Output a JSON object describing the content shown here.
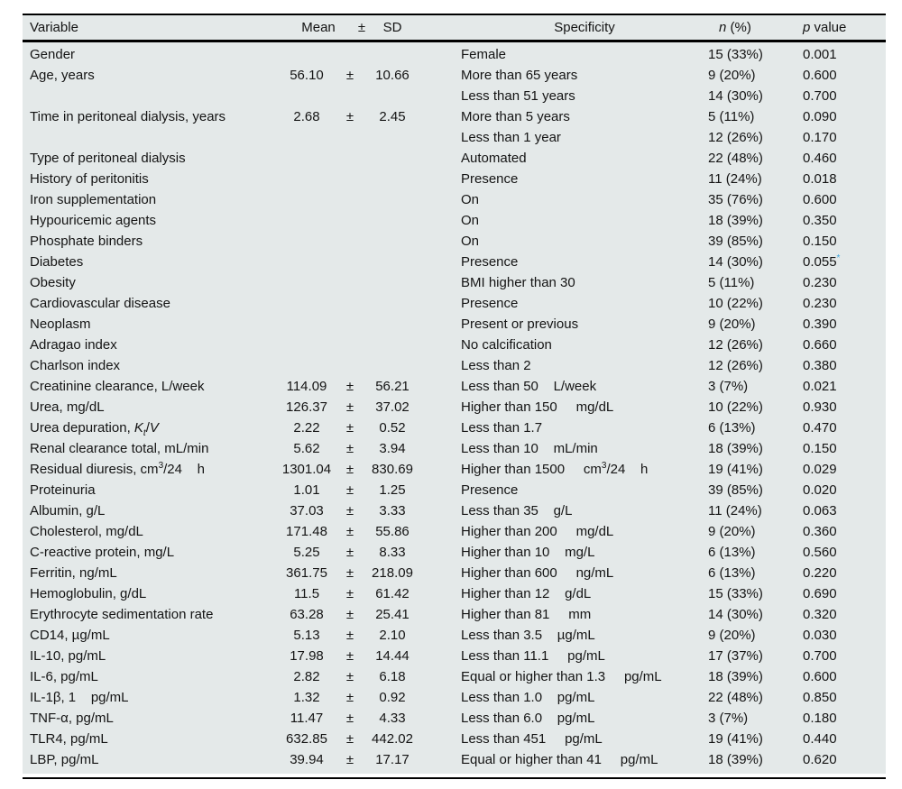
{
  "table": {
    "background_color": "#e4e9e9",
    "rule_color": "#000000",
    "accent_color": "#3aa4dc",
    "pm_sign": "±",
    "header": {
      "variable": "Variable",
      "mean": "Mean",
      "pm": "±",
      "sd": "SD",
      "specificity": "Specificity",
      "n_italic": "n",
      "n_rest": " (%)",
      "p_italic": "p",
      "p_rest": " value"
    },
    "rows": [
      {
        "variable": "Gender",
        "mean": "",
        "sd": "",
        "specificity": "Female",
        "n": "15 (33%)",
        "p": "0.001"
      },
      {
        "variable": "Age, years",
        "mean": "56.10",
        "sd": "10.66",
        "specificity": "More than 65 years",
        "n": "9 (20%)",
        "p": "0.600"
      },
      {
        "variable": "",
        "mean": "",
        "sd": "",
        "specificity": "Less than 51 years",
        "n": "14 (30%)",
        "p": "0.700"
      },
      {
        "variable": "Time in peritoneal dialysis, years",
        "mean": "2.68",
        "sd": "2.45",
        "specificity": "More than 5 years",
        "n": "5 (11%)",
        "p": "0.090"
      },
      {
        "variable": "",
        "mean": "",
        "sd": "",
        "specificity": "Less than 1 year",
        "n": "12 (26%)",
        "p": "0.170"
      },
      {
        "variable": "Type of peritoneal dialysis",
        "mean": "",
        "sd": "",
        "specificity": "Automated",
        "n": "22 (48%)",
        "p": "0.460"
      },
      {
        "variable": "History of peritonitis",
        "mean": "",
        "sd": "",
        "specificity": "Presence",
        "n": "11 (24%)",
        "p": "0.018"
      },
      {
        "variable": "Iron supplementation",
        "mean": "",
        "sd": "",
        "specificity": "On",
        "n": "35 (76%)",
        "p": "0.600"
      },
      {
        "variable": "Hypouricemic agents",
        "mean": "",
        "sd": "",
        "specificity": "On",
        "n": "18 (39%)",
        "p": "0.350"
      },
      {
        "variable": "Phosphate binders",
        "mean": "",
        "sd": "",
        "specificity": "On",
        "n": "39 (85%)",
        "p": "0.150"
      },
      {
        "variable": "Diabetes",
        "mean": "",
        "sd": "",
        "specificity": "Presence",
        "n": "14 (30%)",
        "p": [
          {
            "t": "0.055"
          },
          {
            "t": "*",
            "sup": true,
            "accent": true
          }
        ]
      },
      {
        "variable": "Obesity",
        "mean": "",
        "sd": "",
        "specificity": "BMI higher than 30",
        "n": "5 (11%)",
        "p": "0.230"
      },
      {
        "variable": "Cardiovascular disease",
        "mean": "",
        "sd": "",
        "specificity": "Presence",
        "n": "10 (22%)",
        "p": "0.230"
      },
      {
        "variable": "Neoplasm",
        "mean": "",
        "sd": "",
        "specificity": "Present or previous",
        "n": "9 (20%)",
        "p": "0.390"
      },
      {
        "variable": "Adragao index",
        "mean": "",
        "sd": "",
        "specificity": "No calcification",
        "n": "12 (26%)",
        "p": "0.660"
      },
      {
        "variable": "Charlson index",
        "mean": "",
        "sd": "",
        "specificity": "Less than 2",
        "n": "12 (26%)",
        "p": "0.380"
      },
      {
        "variable": "Creatinine clearance, L/week",
        "mean": "114.09",
        "sd": "56.21",
        "specificity": "Less than 50    L/week",
        "n": "3 (7%)",
        "p": "0.021"
      },
      {
        "variable": "Urea, mg/dL",
        "mean": "126.37",
        "sd": "37.02",
        "specificity": "Higher than 150     mg/dL",
        "n": "10 (22%)",
        "p": "0.930"
      },
      {
        "variable": [
          {
            "t": "Urea depuration, "
          },
          {
            "t": "K",
            "i": true
          },
          {
            "t": "t",
            "i": true,
            "sub": true
          },
          {
            "t": "/"
          },
          {
            "t": "V",
            "i": true
          }
        ],
        "mean": "2.22",
        "sd": "0.52",
        "specificity": "Less than 1.7",
        "n": "6 (13%)",
        "p": "0.470"
      },
      {
        "variable": "Renal clearance total, mL/min",
        "mean": "5.62",
        "sd": "3.94",
        "specificity": "Less than 10    mL/min",
        "n": "18 (39%)",
        "p": "0.150"
      },
      {
        "variable": [
          {
            "t": "Residual diuresis, cm"
          },
          {
            "t": "3",
            "sup": true
          },
          {
            "t": "/24    h"
          }
        ],
        "mean": "1301.04",
        "sd": "830.69",
        "specificity": [
          {
            "t": "Higher than 1500     cm"
          },
          {
            "t": "3",
            "sup": true
          },
          {
            "t": "/24    h"
          }
        ],
        "n": "19 (41%)",
        "p": "0.029"
      },
      {
        "variable": "Proteinuria",
        "mean": "1.01",
        "sd": "1.25",
        "specificity": "Presence",
        "n": "39 (85%)",
        "p": "0.020"
      },
      {
        "variable": "Albumin, g/L",
        "mean": "37.03",
        "sd": "3.33",
        "specificity": "Less than 35    g/L",
        "n": "11 (24%)",
        "p": "0.063"
      },
      {
        "variable": "Cholesterol, mg/dL",
        "mean": "171.48",
        "sd": "55.86",
        "specificity": "Higher than 200     mg/dL",
        "n": "9 (20%)",
        "p": "0.360"
      },
      {
        "variable": "C-reactive protein, mg/L",
        "mean": "5.25",
        "sd": "8.33",
        "specificity": "Higher than 10    mg/L",
        "n": "6 (13%)",
        "p": "0.560"
      },
      {
        "variable": "Ferritin, ng/mL",
        "mean": "361.75",
        "sd": "218.09",
        "specificity": "Higher than 600     ng/mL",
        "n": "6 (13%)",
        "p": "0.220"
      },
      {
        "variable": "Hemoglobulin, g/dL",
        "mean": "11.5",
        "sd": "61.42",
        "specificity": "Higher than 12    g/dL",
        "n": "15 (33%)",
        "p": "0.690"
      },
      {
        "variable": "Erythrocyte sedimentation rate",
        "mean": "63.28",
        "sd": "25.41",
        "specificity": "Higher than 81     mm",
        "n": "14 (30%)",
        "p": "0.320"
      },
      {
        "variable": "CD14, µg/mL",
        "mean": "5.13",
        "sd": "2.10",
        "specificity": "Less than 3.5    µg/mL",
        "n": "9 (20%)",
        "p": "0.030"
      },
      {
        "variable": "IL-10, pg/mL",
        "mean": "17.98",
        "sd": "14.44",
        "specificity": "Less than 11.1     pg/mL",
        "n": "17 (37%)",
        "p": "0.700"
      },
      {
        "variable": "IL-6, pg/mL",
        "mean": "2.82",
        "sd": "6.18",
        "specificity": "Equal or higher than 1.3     pg/mL",
        "n": "18 (39%)",
        "p": "0.600"
      },
      {
        "variable": "IL-1β, 1    pg/mL",
        "mean": "1.32",
        "sd": "0.92",
        "specificity": "Less than 1.0    pg/mL",
        "n": "22 (48%)",
        "p": "0.850"
      },
      {
        "variable": "TNF-α, pg/mL",
        "mean": "11.47",
        "sd": "4.33",
        "specificity": "Less than 6.0    pg/mL",
        "n": "3 (7%)",
        "p": "0.180"
      },
      {
        "variable": "TLR4, pg/mL",
        "mean": "632.85",
        "sd": "442.02",
        "specificity": "Less than 451     pg/mL",
        "n": "19 (41%)",
        "p": "0.440"
      },
      {
        "variable": "LBP, pg/mL",
        "mean": "39.94",
        "sd": "17.17",
        "specificity": "Equal or higher than 41     pg/mL",
        "n": "18 (39%)",
        "p": "0.620"
      }
    ]
  }
}
